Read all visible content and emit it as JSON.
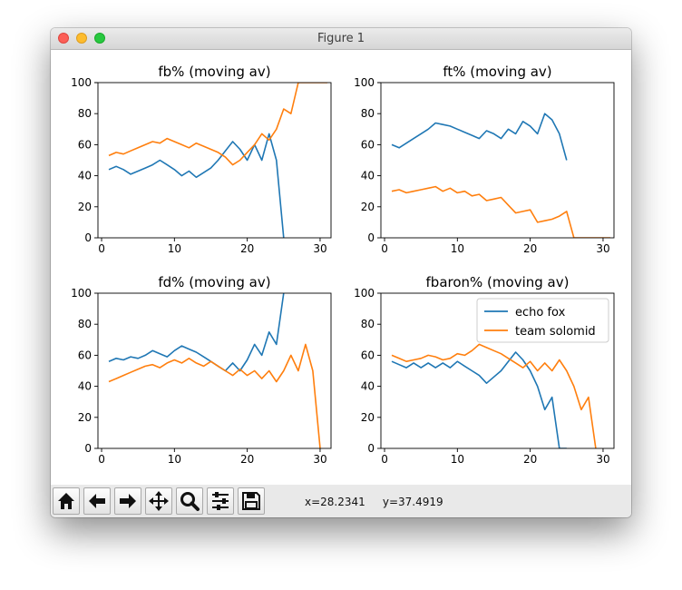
{
  "window": {
    "title": "Figure 1"
  },
  "toolbar": {
    "buttons": [
      {
        "name": "home-button",
        "icon": "home-icon"
      },
      {
        "name": "back-button",
        "icon": "arrow-left-icon"
      },
      {
        "name": "forward-button",
        "icon": "arrow-right-icon"
      },
      {
        "name": "pan-button",
        "icon": "move-icon"
      },
      {
        "name": "zoom-button",
        "icon": "magnifier-icon"
      },
      {
        "name": "configure-subplots-button",
        "icon": "sliders-icon"
      },
      {
        "name": "save-button",
        "icon": "floppy-disk-icon"
      }
    ],
    "coords": {
      "x": "x=28.2341",
      "y": "y=37.4919"
    }
  },
  "colors": {
    "series1": "#1f77b4",
    "series2": "#ff7f0e"
  },
  "chart_data": [
    {
      "type": "line",
      "title": "fb% (moving av)",
      "xlim": [
        -0.5,
        31.5
      ],
      "ylim": [
        0,
        100
      ],
      "xticks": [
        0,
        10,
        20,
        30
      ],
      "yticks": [
        0,
        20,
        40,
        60,
        80,
        100
      ],
      "series": [
        {
          "x": [
            1,
            2,
            3,
            4,
            5,
            6,
            7,
            8,
            9,
            10,
            11,
            12,
            13,
            14,
            15,
            16,
            17,
            18,
            19,
            20,
            21,
            22,
            23,
            24,
            25
          ],
          "y": [
            44,
            46,
            44,
            41,
            43,
            45,
            47,
            50,
            47,
            44,
            40,
            43,
            39,
            42,
            45,
            50,
            56,
            62,
            57,
            50,
            60,
            50,
            67,
            50,
            0
          ]
        },
        {
          "x": [
            1,
            2,
            3,
            4,
            5,
            6,
            7,
            8,
            9,
            10,
            11,
            12,
            13,
            14,
            15,
            16,
            17,
            18,
            19,
            20,
            21,
            22,
            23,
            24,
            25,
            26,
            27,
            28,
            29,
            30,
            31
          ],
          "y": [
            53,
            55,
            54,
            56,
            58,
            60,
            62,
            61,
            64,
            62,
            60,
            58,
            61,
            59,
            57,
            55,
            52,
            47,
            50,
            55,
            60,
            67,
            63,
            70,
            83,
            80,
            100,
            100,
            100,
            100,
            100
          ]
        }
      ]
    },
    {
      "type": "line",
      "title": "ft% (moving av)",
      "xlim": [
        -0.5,
        31.5
      ],
      "ylim": [
        0,
        100
      ],
      "xticks": [
        0,
        10,
        20,
        30
      ],
      "yticks": [
        0,
        20,
        40,
        60,
        80,
        100
      ],
      "series": [
        {
          "x": [
            1,
            2,
            3,
            4,
            5,
            6,
            7,
            8,
            9,
            10,
            11,
            12,
            13,
            14,
            15,
            16,
            17,
            18,
            19,
            20,
            21,
            22,
            23,
            24,
            25
          ],
          "y": [
            60,
            58,
            61,
            64,
            67,
            70,
            74,
            73,
            72,
            70,
            68,
            66,
            64,
            69,
            67,
            64,
            70,
            67,
            75,
            72,
            67,
            80,
            76,
            67,
            50
          ]
        },
        {
          "x": [
            1,
            2,
            3,
            4,
            5,
            6,
            7,
            8,
            9,
            10,
            11,
            12,
            13,
            14,
            15,
            16,
            17,
            18,
            19,
            20,
            21,
            22,
            23,
            24,
            25,
            26,
            27,
            28,
            29,
            30,
            31
          ],
          "y": [
            30,
            31,
            29,
            30,
            31,
            32,
            33,
            30,
            32,
            29,
            30,
            27,
            28,
            24,
            25,
            26,
            21,
            16,
            17,
            18,
            10,
            11,
            12,
            14,
            17,
            0,
            0,
            0,
            0,
            0,
            0
          ]
        }
      ]
    },
    {
      "type": "line",
      "title": "fd% (moving av)",
      "xlim": [
        -0.5,
        31.5
      ],
      "ylim": [
        0,
        100
      ],
      "xticks": [
        0,
        10,
        20,
        30
      ],
      "yticks": [
        0,
        20,
        40,
        60,
        80,
        100
      ],
      "series": [
        {
          "x": [
            1,
            2,
            3,
            4,
            5,
            6,
            7,
            8,
            9,
            10,
            11,
            12,
            13,
            14,
            15,
            16,
            17,
            18,
            19,
            20,
            21,
            22,
            23,
            24,
            25
          ],
          "y": [
            56,
            58,
            57,
            59,
            58,
            60,
            63,
            61,
            59,
            63,
            66,
            64,
            62,
            59,
            56,
            53,
            50,
            55,
            50,
            57,
            67,
            60,
            75,
            67,
            100
          ]
        },
        {
          "x": [
            1,
            2,
            3,
            4,
            5,
            6,
            7,
            8,
            9,
            10,
            11,
            12,
            13,
            14,
            15,
            16,
            17,
            18,
            19,
            20,
            21,
            22,
            23,
            24,
            25,
            26,
            27,
            28,
            29,
            30
          ],
          "y": [
            43,
            45,
            47,
            49,
            51,
            53,
            54,
            52,
            55,
            57,
            55,
            58,
            55,
            53,
            56,
            53,
            50,
            47,
            51,
            47,
            50,
            45,
            50,
            43,
            50,
            60,
            50,
            67,
            50,
            0
          ]
        }
      ]
    },
    {
      "type": "line",
      "title": "fbaron% (moving av)",
      "xlim": [
        -0.5,
        31.5
      ],
      "ylim": [
        0,
        100
      ],
      "xticks": [
        0,
        10,
        20,
        30
      ],
      "yticks": [
        0,
        20,
        40,
        60,
        80,
        100
      ],
      "legend": {
        "position": "top-right",
        "entries": [
          "echo fox",
          "team solomid"
        ]
      },
      "series": [
        {
          "name": "echo fox",
          "x": [
            1,
            2,
            3,
            4,
            5,
            6,
            7,
            8,
            9,
            10,
            11,
            12,
            13,
            14,
            15,
            16,
            17,
            18,
            19,
            20,
            21,
            22,
            23,
            24,
            25
          ],
          "y": [
            56,
            54,
            52,
            55,
            52,
            55,
            52,
            55,
            52,
            56,
            53,
            50,
            47,
            42,
            46,
            50,
            56,
            62,
            57,
            50,
            40,
            25,
            33,
            0,
            0
          ]
        },
        {
          "name": "team solomid",
          "x": [
            1,
            2,
            3,
            4,
            5,
            6,
            7,
            8,
            9,
            10,
            11,
            12,
            13,
            14,
            15,
            16,
            17,
            18,
            19,
            20,
            21,
            22,
            23,
            24,
            25,
            26,
            27,
            28,
            29
          ],
          "y": [
            60,
            58,
            56,
            57,
            58,
            60,
            59,
            57,
            58,
            61,
            60,
            63,
            67,
            65,
            63,
            61,
            58,
            55,
            52,
            56,
            50,
            55,
            50,
            57,
            50,
            40,
            25,
            33,
            0
          ]
        }
      ]
    }
  ]
}
